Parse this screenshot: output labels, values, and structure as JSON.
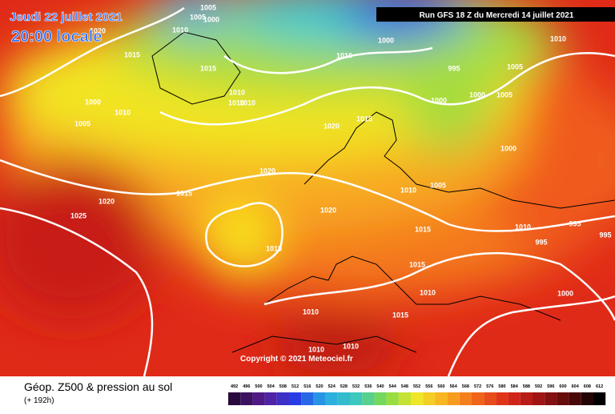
{
  "header": {
    "date": "Jeudi 22 juillet 2021",
    "time": "20:00 locale",
    "run": "Run GFS 18 Z du Mercredi 14 juillet 2021"
  },
  "footer": {
    "title": "Géop. Z500 & pression au sol",
    "lead": "(+ 192h)",
    "copyright": "Copyright © 2021 Meteociel.fr"
  },
  "isobar_labels": [
    "1020",
    "1010",
    "1005",
    "1005",
    "1000",
    "1000",
    "1015",
    "1015",
    "1010",
    "995",
    "1010",
    "1005",
    "1000",
    "1010",
    "1005",
    "1010",
    "1010",
    "1010",
    "1000",
    "1000",
    "1005",
    "1020",
    "1015",
    "1000",
    "1020",
    "1015",
    "1010",
    "1005",
    "1020",
    "1025",
    "1020",
    "1015",
    "1010",
    "995",
    "995",
    "995",
    "1015",
    "1015",
    "1010",
    "1000",
    "1010",
    "1015",
    "1010",
    "1010"
  ],
  "scale_ticks": [
    492,
    496,
    500,
    504,
    508,
    512,
    516,
    520,
    524,
    528,
    532,
    536,
    540,
    544,
    548,
    552,
    556,
    560,
    564,
    568,
    572,
    576,
    580,
    584,
    588,
    592,
    596,
    600,
    604,
    608,
    612
  ]
}
